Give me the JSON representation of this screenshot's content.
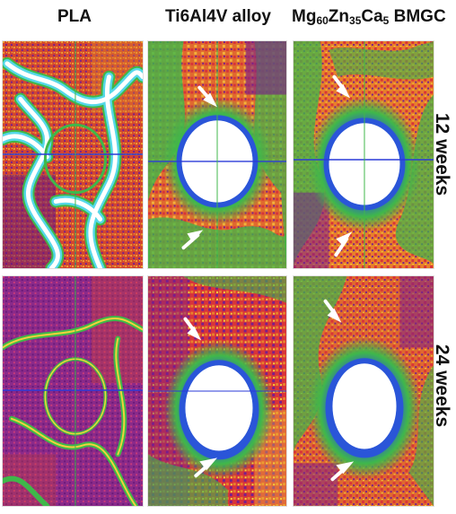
{
  "columns": {
    "pla": "PLA",
    "ti": "Ti6Al4V alloy",
    "mg": {
      "pre1": "Mg",
      "sub1": "60",
      "pre2": "Zn",
      "sub2": "35",
      "pre3": "Ca",
      "sub3": "5",
      "post": " BMGC"
    }
  },
  "rows": {
    "row1": "12 weeks",
    "row2": "24 weeks"
  },
  "colors": {
    "purple": "#7a1f8a",
    "orange": "#e8802a",
    "red": "#d8343a",
    "yellow": "#f2d23c",
    "green": "#3fb84a",
    "blue": "#2a55d8",
    "cyan": "#55d8e8",
    "white": "#ffffff"
  }
}
